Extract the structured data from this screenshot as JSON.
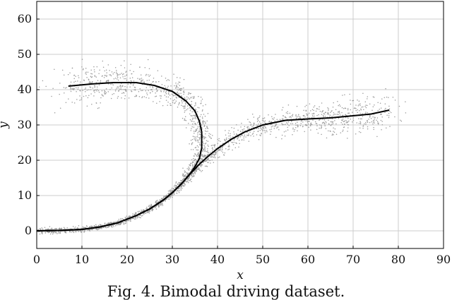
{
  "chart_data": {
    "type": "scatter",
    "title": "",
    "caption": "Fig. 4. Bimodal driving dataset.",
    "xlabel": "x",
    "ylabel": "y",
    "xlim": [
      0,
      90
    ],
    "ylim": [
      -5,
      65
    ],
    "xticks": [
      0,
      10,
      20,
      30,
      40,
      50,
      60,
      70,
      80,
      90
    ],
    "yticks": [
      0,
      10,
      20,
      30,
      40,
      50,
      60
    ],
    "grid": true,
    "colors": {
      "points": "#9a9a9a",
      "curves": "#000000",
      "grid": "#cccccc",
      "axes": "#000000"
    },
    "scatter_description": {
      "clusters": [
        {
          "name": "",
          "x_range": [
            2,
            40
          ],
          "y_range": [
            0,
            54
          ],
          "note": "upper arc around curve 1"
        },
        {
          "name": "",
          "x_range": [
            3,
            83
          ],
          "y_range": [
            0,
            51
          ],
          "note": "rising band around curve 2"
        }
      ]
    },
    "series": [
      {
        "name": "",
        "kind": "line",
        "x": [
          0,
          5,
          10,
          14,
          18,
          22,
          25,
          28,
          30,
          32,
          34,
          35,
          36,
          36.5,
          36.5,
          36,
          35,
          33,
          30,
          26,
          22,
          17,
          12,
          7
        ],
        "y": [
          0,
          0.1,
          0.4,
          1.1,
          2.3,
          4.3,
          6.2,
          8.7,
          10.8,
          13.3,
          16.3,
          18.2,
          20.5,
          23.5,
          28,
          31,
          34,
          36.8,
          39.5,
          41.2,
          42,
          42,
          41.6,
          41
        ]
      },
      {
        "name": "",
        "kind": "line",
        "x": [
          0,
          5,
          10,
          14,
          18,
          22,
          25,
          28,
          30,
          32,
          34,
          36,
          38,
          40,
          43,
          46,
          50,
          55,
          60,
          65,
          70,
          74,
          78
        ],
        "y": [
          0,
          0.1,
          0.4,
          1.1,
          2.3,
          4.3,
          6.2,
          8.7,
          10.8,
          13.3,
          16.2,
          18.9,
          21.2,
          23.3,
          25.9,
          28,
          30,
          31.3,
          31.7,
          32,
          32.6,
          33.1,
          34.2
        ]
      }
    ]
  }
}
